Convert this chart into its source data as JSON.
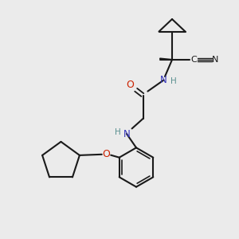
{
  "bg_color": "#ebebeb",
  "bond_color": "#1a1a1a",
  "nitrogen_color": "#3535bb",
  "oxygen_color": "#cc2200",
  "nh_color": "#5a9090",
  "figsize": [
    3.0,
    3.0
  ],
  "dpi": 100,
  "xlim": [
    0.0,
    10.0
  ],
  "ylim": [
    0.5,
    10.5
  ]
}
